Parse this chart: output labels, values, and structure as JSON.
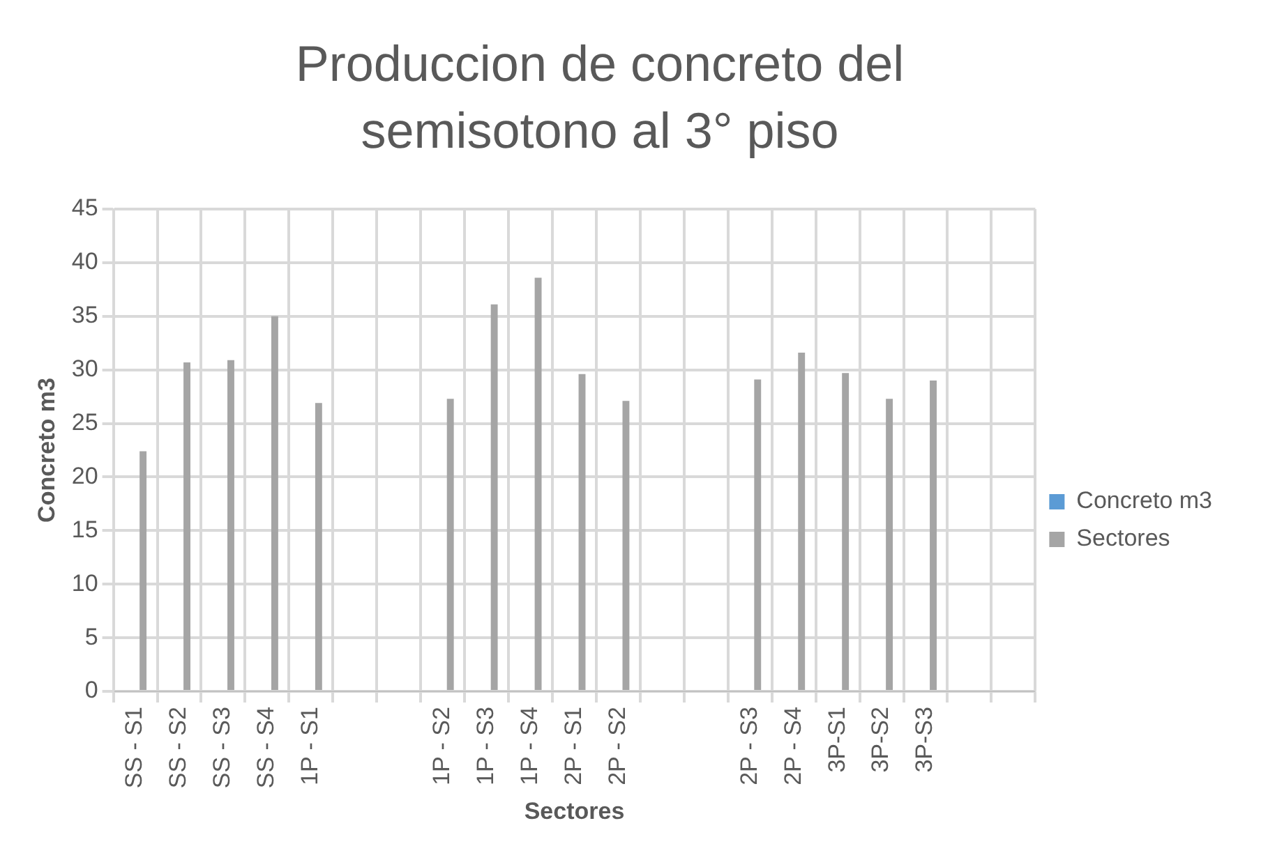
{
  "chart_data": {
    "type": "bar",
    "title": "Produccion de concreto del semisotono al 3° piso",
    "xlabel": "Sectores",
    "ylabel": "Concreto m3",
    "categories": [
      "SS - S1",
      "SS - S2",
      "SS - S3",
      "SS - S4",
      "1P - S1",
      null,
      null,
      "1P - S2",
      "1P - S3",
      "1P - S4",
      "2P - S1",
      "2P - S2",
      null,
      null,
      "2P - S3",
      "2P - S4",
      "3P-S1",
      "3P-S2",
      "3P-S3",
      null,
      null
    ],
    "series": [
      {
        "name": "Concreto m3",
        "color": "#5b9bd5",
        "values": [
          null,
          null,
          null,
          null,
          null,
          null,
          null,
          null,
          null,
          null,
          null,
          null,
          null,
          null,
          null,
          null,
          null,
          null,
          null,
          null,
          null
        ]
      },
      {
        "name": "Sectores",
        "color": "#a5a5a5",
        "values": [
          22.4,
          30.7,
          30.9,
          35.0,
          26.9,
          null,
          null,
          27.3,
          36.1,
          38.6,
          29.6,
          27.1,
          null,
          null,
          29.1,
          31.6,
          29.7,
          27.3,
          29.0,
          null,
          null
        ]
      }
    ],
    "ylim": [
      0,
      45
    ],
    "yticks": [
      0,
      5,
      10,
      15,
      20,
      25,
      30,
      35,
      40,
      45
    ],
    "grid": true,
    "legend": "right"
  }
}
